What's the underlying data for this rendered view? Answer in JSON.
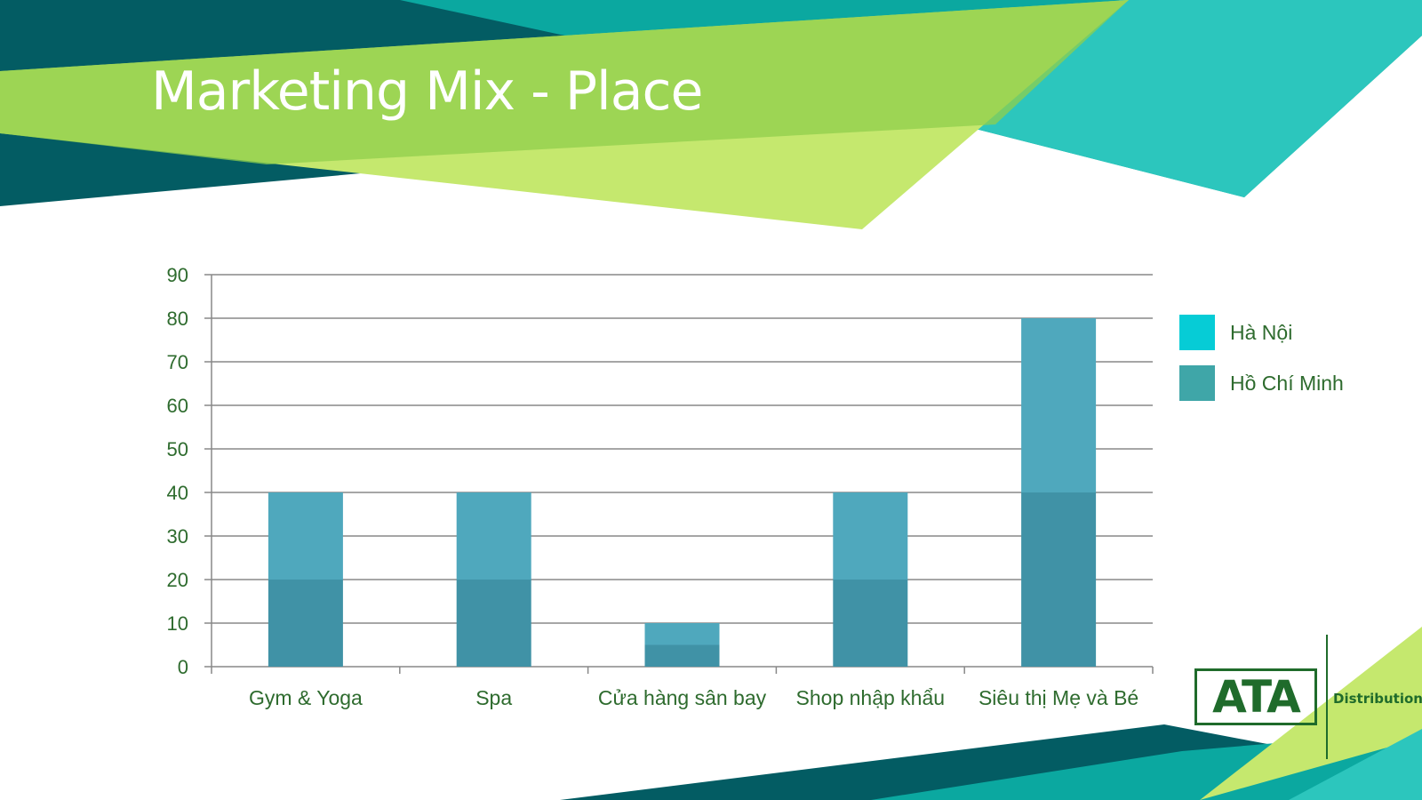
{
  "slide": {
    "title": "Marketing Mix - Place"
  },
  "logo": {
    "mark": "ATA",
    "tagline": "Distribution"
  },
  "colors": {
    "dark_teal": "#035c63",
    "teal": "#0ba8a0",
    "light_teal": "#2cc6bd",
    "lime": "#c5e86e",
    "green": "#8fcf4c",
    "series_top": "#4fa8bd",
    "series_bottom": "#4092a6",
    "legend_hanoi": "#06ccd6",
    "legend_hcm": "#3fa6a8",
    "axis_text": "#2e6b2e",
    "grid": "#888888"
  },
  "chart_data": {
    "type": "bar",
    "stacked": true,
    "categories": [
      "Gym & Yoga",
      "Spa",
      "Cửa hàng sân bay",
      "Shop nhập khẩu",
      "Siêu thị Mẹ và Bé"
    ],
    "series": [
      {
        "name": "Hồ Chí Minh",
        "values": [
          20,
          20,
          5,
          20,
          40
        ]
      },
      {
        "name": "Hà Nội",
        "values": [
          20,
          20,
          5,
          20,
          40
        ]
      }
    ],
    "legend": [
      "Hà Nội",
      "Hồ Chí Minh"
    ],
    "ylim": [
      0,
      90
    ],
    "yticks": [
      0,
      10,
      20,
      30,
      40,
      50,
      60,
      70,
      80,
      90
    ],
    "grid": true,
    "legend_position": "right",
    "xlabel": "",
    "ylabel": ""
  }
}
